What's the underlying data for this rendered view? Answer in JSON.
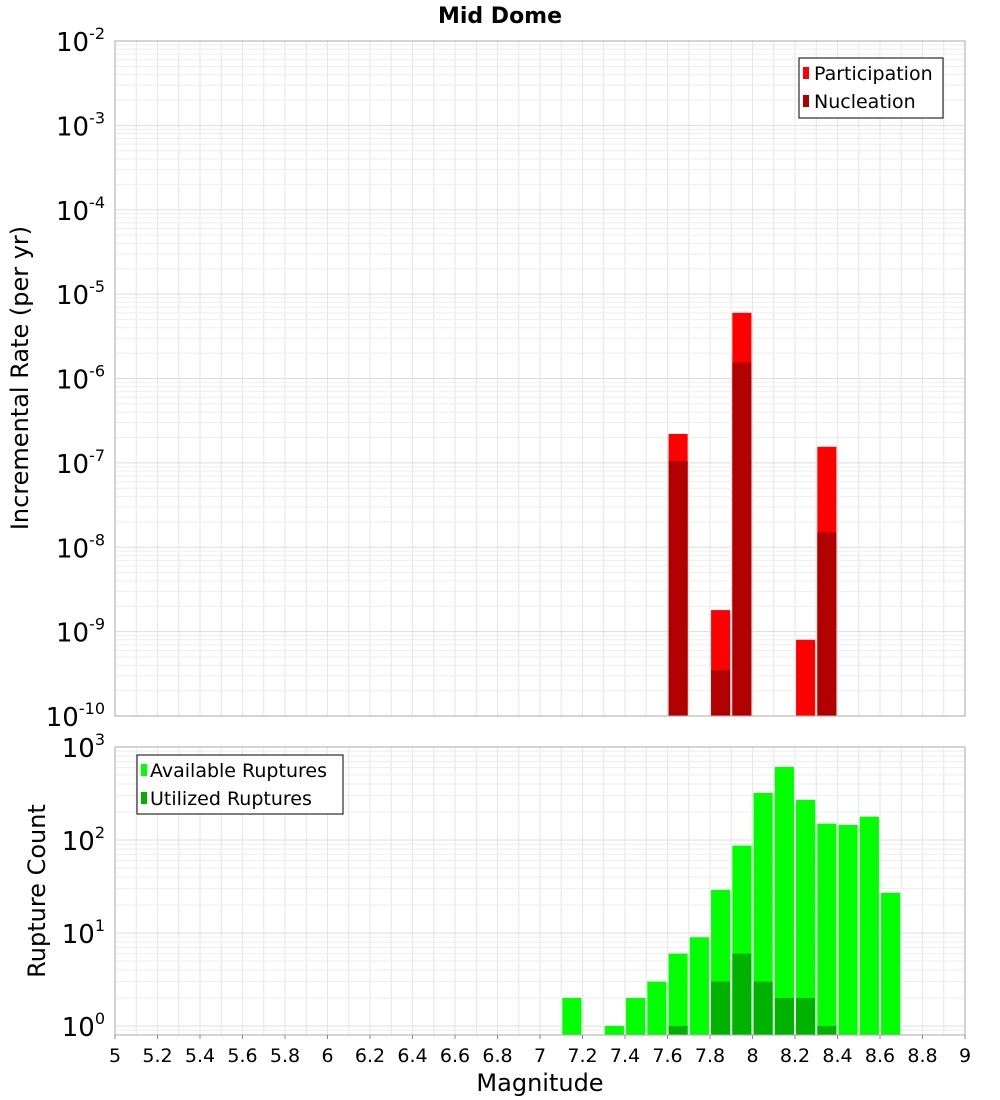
{
  "figure": {
    "title": "Mid Dome"
  },
  "chart_data": [
    {
      "type": "bar",
      "scale": "log",
      "title": "Mid Dome",
      "xlabel": "Magnitude",
      "ylabel": "Incremental Rate (per yr)",
      "xlim": [
        5,
        9
      ],
      "ylim": [
        1e-10,
        0.01
      ],
      "y_tick_exponents": [
        -10,
        -9,
        -8,
        -7,
        -6,
        -5,
        -4,
        -3,
        -2
      ],
      "legend_position": "top-right",
      "grid": true,
      "series": [
        {
          "name": "Participation",
          "color": "#ff0000",
          "points": [
            {
              "x": 7.65,
              "y": 2.2e-07
            },
            {
              "x": 7.85,
              "y": 1.8e-09
            },
            {
              "x": 7.95,
              "y": 6e-06
            },
            {
              "x": 8.25,
              "y": 8e-10
            },
            {
              "x": 8.35,
              "y": 1.55e-07
            }
          ]
        },
        {
          "name": "Nucleation",
          "color": "#b20000",
          "points": [
            {
              "x": 7.65,
              "y": 1.05e-07
            },
            {
              "x": 7.85,
              "y": 3.5e-10
            },
            {
              "x": 7.95,
              "y": 1.55e-06
            },
            {
              "x": 8.35,
              "y": 1.5e-08
            }
          ]
        }
      ]
    },
    {
      "type": "bar",
      "scale": "log",
      "xlabel": "Magnitude",
      "ylabel": "Rupture Count",
      "xlim": [
        5,
        9
      ],
      "ylim": [
        0.8,
        1000
      ],
      "y_tick_exponents": [
        0,
        1,
        2,
        3
      ],
      "x_ticks": [
        "5",
        "5.2",
        "5.4",
        "5.6",
        "5.8",
        "6",
        "6.2",
        "6.4",
        "6.6",
        "6.8",
        "7",
        "7.2",
        "7.4",
        "7.6",
        "7.8",
        "8",
        "8.2",
        "8.4",
        "8.6",
        "8.8",
        "9"
      ],
      "legend_position": "top-left",
      "grid": true,
      "series": [
        {
          "name": "Available Ruptures",
          "color": "#00ff00",
          "points": [
            {
              "x": 7.15,
              "y": 2
            },
            {
              "x": 7.35,
              "y": 1
            },
            {
              "x": 7.45,
              "y": 2
            },
            {
              "x": 7.55,
              "y": 3
            },
            {
              "x": 7.65,
              "y": 6
            },
            {
              "x": 7.75,
              "y": 9
            },
            {
              "x": 7.85,
              "y": 29
            },
            {
              "x": 7.95,
              "y": 87
            },
            {
              "x": 8.05,
              "y": 320
            },
            {
              "x": 8.15,
              "y": 610
            },
            {
              "x": 8.25,
              "y": 270
            },
            {
              "x": 8.35,
              "y": 150
            },
            {
              "x": 8.45,
              "y": 145
            },
            {
              "x": 8.55,
              "y": 178
            },
            {
              "x": 8.65,
              "y": 27
            }
          ]
        },
        {
          "name": "Utilized Ruptures",
          "color": "#00b200",
          "points": [
            {
              "x": 7.65,
              "y": 1
            },
            {
              "x": 7.85,
              "y": 3
            },
            {
              "x": 7.95,
              "y": 6
            },
            {
              "x": 8.05,
              "y": 3
            },
            {
              "x": 8.15,
              "y": 2
            },
            {
              "x": 8.25,
              "y": 2
            },
            {
              "x": 8.35,
              "y": 1
            }
          ]
        }
      ]
    }
  ]
}
